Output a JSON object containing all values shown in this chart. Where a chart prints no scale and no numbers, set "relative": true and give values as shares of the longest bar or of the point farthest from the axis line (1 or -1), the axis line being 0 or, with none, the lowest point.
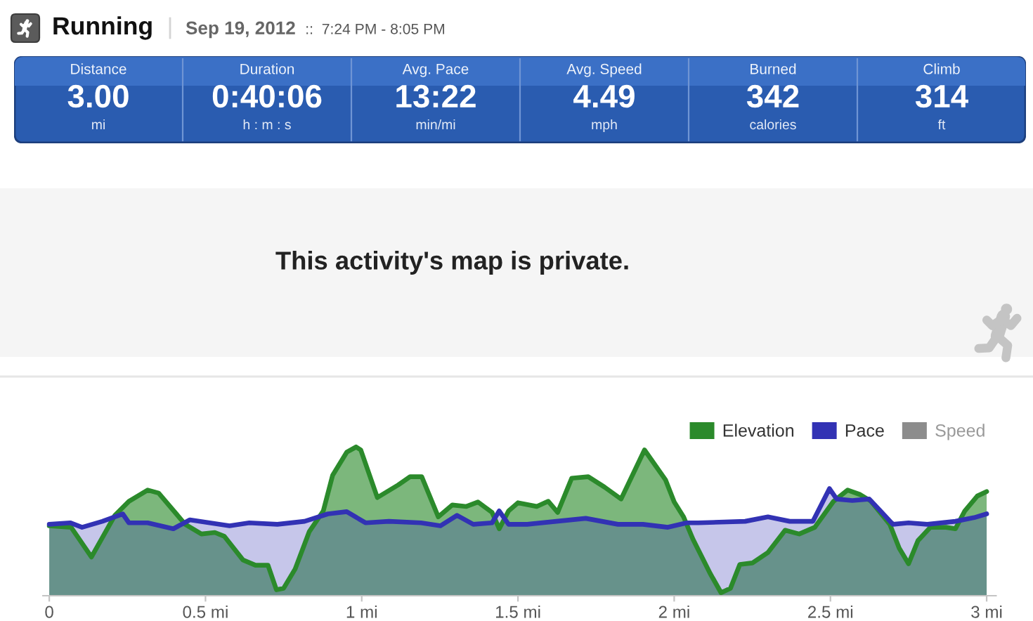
{
  "chart_data": [
    {
      "type": "other",
      "title": "Running",
      "subtitle": "Sep 19, 2012",
      "annotations": [
        "::",
        "7:24 PM - 8:05 PM"
      ]
    },
    {
      "type": "other",
      "categories": [
        "Distance",
        "Duration",
        "Avg. Pace",
        "Avg. Speed",
        "Burned",
        "Climb"
      ],
      "value_labels": [
        "3.00",
        "0:40:06",
        "13:22",
        "4.49",
        "342",
        "314"
      ],
      "annotations": [
        "mi",
        "h : m : s",
        "min/mi",
        "mph",
        "calories",
        "ft"
      ]
    },
    {
      "type": "other",
      "title": "This activity's map is private."
    },
    {
      "type": "area",
      "relative": true,
      "xlim": [
        -0.02,
        3.03
      ],
      "xticks": [
        0,
        {
          "value": 0.5,
          "label": "0.5 mi"
        },
        {
          "value": 1,
          "label": "1 mi"
        },
        {
          "value": 1.5,
          "label": "1.5 mi"
        },
        {
          "value": 2,
          "label": "2 mi"
        },
        {
          "value": 2.5,
          "label": "2.5 mi"
        },
        {
          "value": 3,
          "label": "3 mi"
        }
      ],
      "legend": "top right",
      "series": [
        {
          "name": "Elevation",
          "color": "#2b8a2b",
          "x": [
            0,
            0.07,
            0.135,
            0.21,
            0.255,
            0.315,
            0.35,
            0.435,
            0.487,
            0.53,
            0.56,
            0.62,
            0.66,
            0.7,
            0.727,
            0.75,
            0.787,
            0.832,
            0.877,
            0.907,
            0.952,
            0.982,
            0.997,
            1.05,
            1.117,
            1.155,
            1.192,
            1.245,
            1.29,
            1.335,
            1.372,
            1.417,
            1.44,
            1.47,
            1.5,
            1.56,
            1.597,
            1.627,
            1.672,
            1.725,
            1.777,
            1.83,
            1.905,
            1.972,
            2.0,
            2.03,
            2.06,
            2.115,
            2.15,
            2.18,
            2.21,
            2.25,
            2.3,
            2.355,
            2.4,
            2.45,
            2.51,
            2.555,
            2.595,
            2.63,
            2.69,
            2.72,
            2.75,
            2.78,
            2.82,
            2.87,
            2.9,
            2.93,
            2.97,
            3.0
          ],
          "values": [
            0.47,
            0.46,
            0.26,
            0.54,
            0.635,
            0.71,
            0.69,
            0.48,
            0.415,
            0.425,
            0.4,
            0.24,
            0.205,
            0.205,
            0.04,
            0.05,
            0.18,
            0.43,
            0.57,
            0.81,
            0.965,
            1.0,
            0.98,
            0.66,
            0.745,
            0.8,
            0.8,
            0.53,
            0.61,
            0.6,
            0.63,
            0.56,
            0.45,
            0.57,
            0.625,
            0.6,
            0.635,
            0.56,
            0.79,
            0.8,
            0.73,
            0.65,
            0.98,
            0.78,
            0.63,
            0.53,
            0.38,
            0.15,
            0.02,
            0.05,
            0.21,
            0.22,
            0.29,
            0.44,
            0.415,
            0.46,
            0.635,
            0.71,
            0.68,
            0.635,
            0.48,
            0.32,
            0.215,
            0.37,
            0.46,
            0.46,
            0.45,
            0.57,
            0.67,
            0.7
          ]
        },
        {
          "name": "Pace",
          "color": "#3232b4",
          "x": [
            0,
            0.067,
            0.105,
            0.17,
            0.235,
            0.255,
            0.315,
            0.397,
            0.45,
            0.577,
            0.64,
            0.73,
            0.817,
            0.892,
            0.952,
            1.012,
            1.087,
            1.19,
            1.252,
            1.305,
            1.357,
            1.417,
            1.44,
            1.47,
            1.53,
            1.717,
            1.82,
            1.9,
            1.98,
            2.04,
            2.077,
            2.227,
            2.3,
            2.37,
            2.444,
            2.497,
            2.52,
            2.57,
            2.624,
            2.66,
            2.7,
            2.75,
            2.81,
            2.9,
            2.96,
            3.0
          ],
          "values": [
            0.48,
            0.49,
            0.46,
            0.5,
            0.55,
            0.49,
            0.49,
            0.45,
            0.51,
            0.47,
            0.49,
            0.48,
            0.5,
            0.55,
            0.565,
            0.49,
            0.5,
            0.49,
            0.47,
            0.54,
            0.48,
            0.49,
            0.57,
            0.48,
            0.48,
            0.52,
            0.48,
            0.48,
            0.46,
            0.49,
            0.49,
            0.5,
            0.53,
            0.5,
            0.5,
            0.72,
            0.65,
            0.64,
            0.65,
            0.57,
            0.48,
            0.49,
            0.48,
            0.5,
            0.525,
            0.55
          ]
        },
        {
          "name": "Speed",
          "color": "#8c8c8c"
        }
      ]
    }
  ]
}
